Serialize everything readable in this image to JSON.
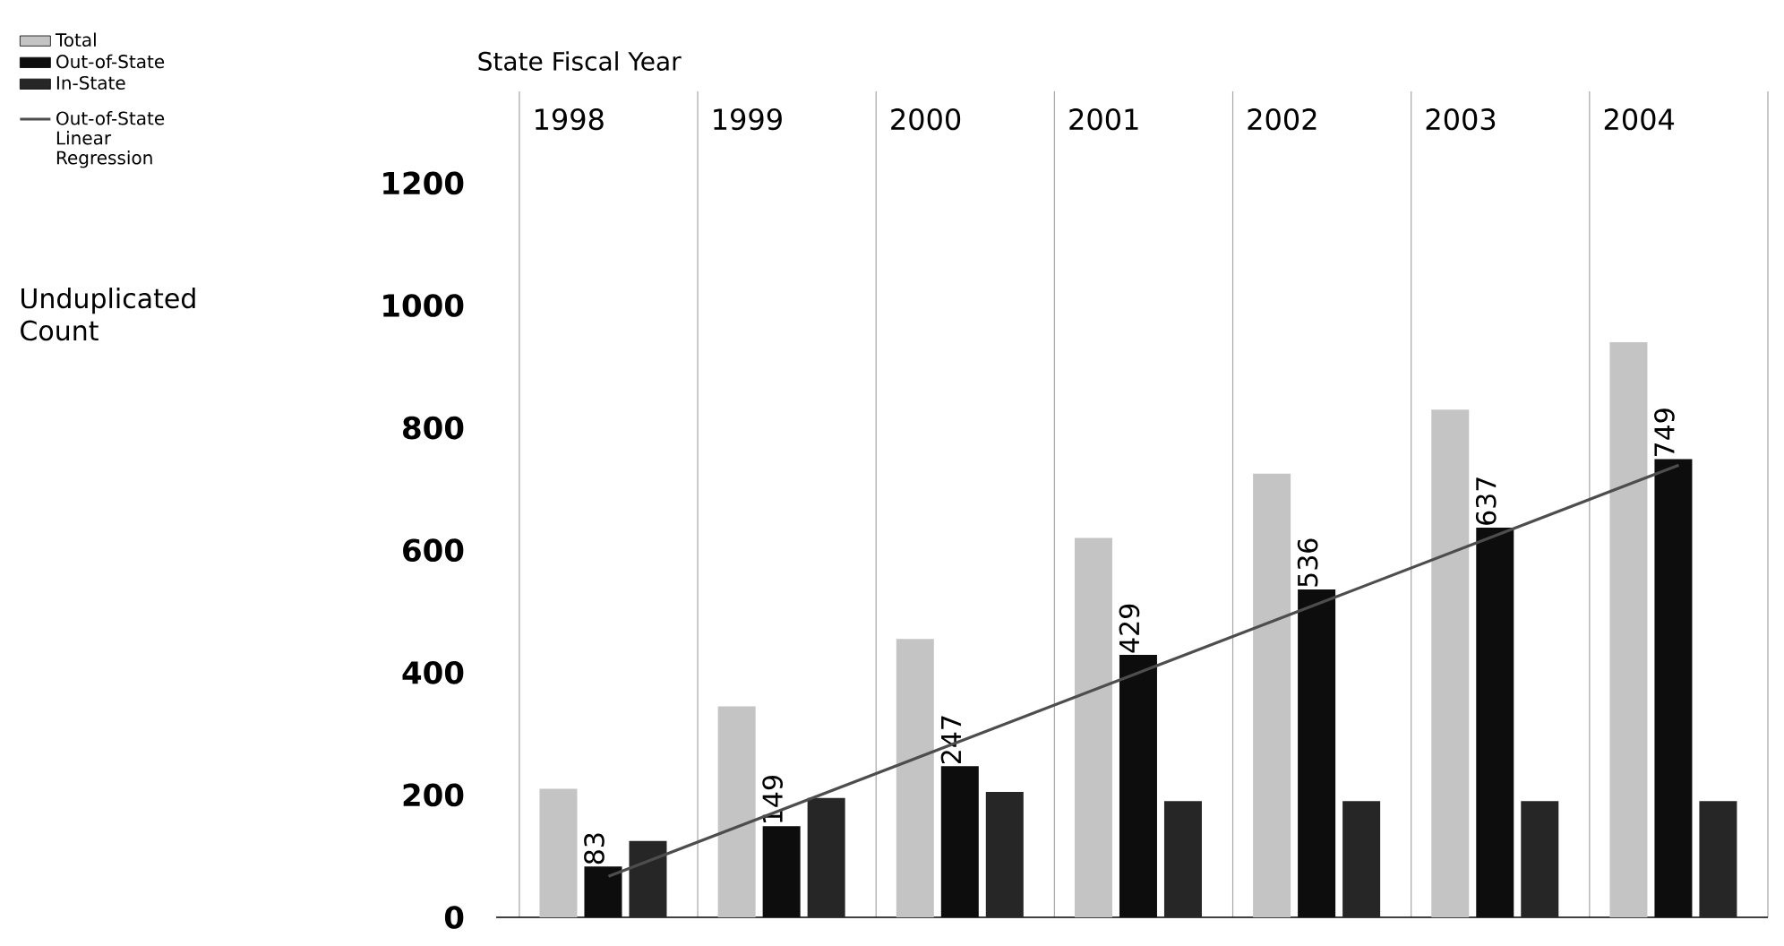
{
  "chart_data": {
    "type": "bar",
    "xlabel": "State Fiscal Year",
    "annotations": [
      "Unduplicated Count"
    ],
    "categories": [
      "1998",
      "1999",
      "2000",
      "2001",
      "2002",
      "2003",
      "2004"
    ],
    "series": [
      {
        "name": "Total",
        "color": "#c4c4c4",
        "values": [
          210,
          345,
          455,
          620,
          725,
          830,
          940
        ]
      },
      {
        "name": "Out-of-State",
        "color": "#0d0d0d",
        "values": [
          83,
          149,
          247,
          429,
          536,
          637,
          749
        ],
        "value_labels": [
          "83",
          "149",
          "247",
          "429",
          "536",
          "637",
          "749"
        ]
      },
      {
        "name": "In-State",
        "color": "#262626",
        "values": [
          125,
          195,
          205,
          190,
          190,
          190,
          190
        ]
      },
      {
        "name": "Out-of-State Linear Regression",
        "type": "line",
        "color": "#4d4d4d",
        "values": [
          67,
          179,
          291,
          403,
          515,
          627,
          739
        ]
      }
    ],
    "ylim": [
      0,
      1350
    ],
    "yticks": [
      0,
      200,
      400,
      600,
      800,
      1000,
      1200
    ],
    "grid": "x",
    "legend": "top left"
  }
}
